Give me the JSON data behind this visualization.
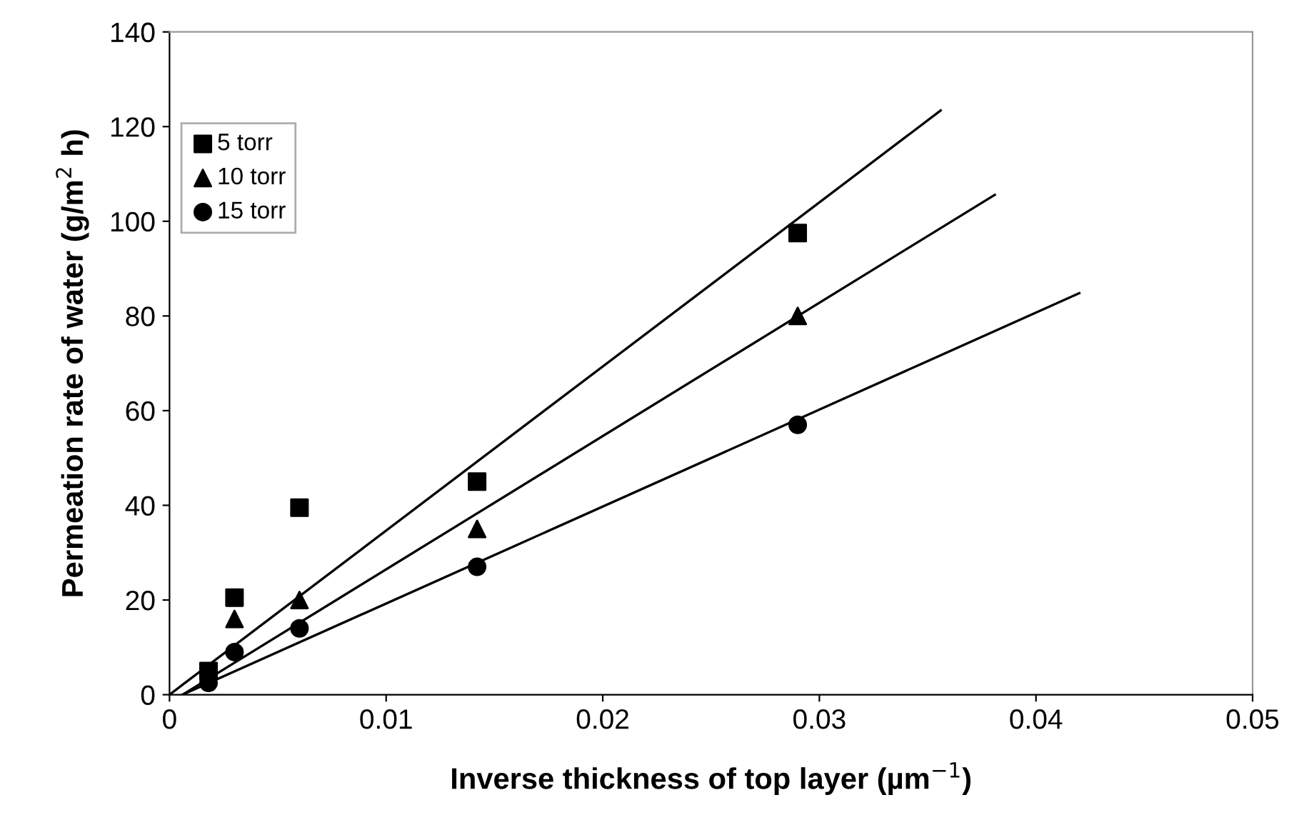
{
  "chart_data": {
    "type": "scatter",
    "xlabel": "Inverse thickness of top layer (µm$^{−1}$)",
    "ylabel": "Permeation rate of water (g/m$^{2}$ h)",
    "xlim": [
      0,
      0.05
    ],
    "ylim": [
      0,
      140
    ],
    "xticks": [
      0,
      0.01,
      0.02,
      0.03,
      0.04,
      0.05
    ],
    "yticks": [
      0,
      20,
      40,
      60,
      80,
      100,
      120,
      140
    ],
    "grid": false,
    "legend": "top left",
    "x": [
      0.0018,
      0.003,
      0.006,
      0.0142,
      0.029
    ],
    "series": [
      {
        "name": "5 torr",
        "color": "#000000",
        "marker": "square",
        "values": [
          5,
          20.5,
          39.5,
          45,
          97.5
        ]
      },
      {
        "name": "10 torr",
        "color": "#000000",
        "marker": "triangle",
        "values": [
          null,
          16,
          20,
          35,
          80
        ]
      },
      {
        "name": "15 torr",
        "color": "#000000",
        "marker": "circle",
        "values": [
          2.5,
          9,
          14,
          27,
          57
        ]
      },
      {
        "type": "line",
        "color": "#000000",
        "marker": "none",
        "x": [
          0,
          0.0356
        ],
        "values": [
          0,
          123.4
        ]
      },
      {
        "type": "line",
        "color": "#000000",
        "marker": "none",
        "x": [
          0.0006,
          0.0381
        ],
        "values": [
          0,
          105.6
        ]
      },
      {
        "type": "line",
        "color": "#000000",
        "marker": "none",
        "x": [
          0.0006,
          0.042
        ],
        "values": [
          0,
          84.8
        ]
      }
    ]
  }
}
